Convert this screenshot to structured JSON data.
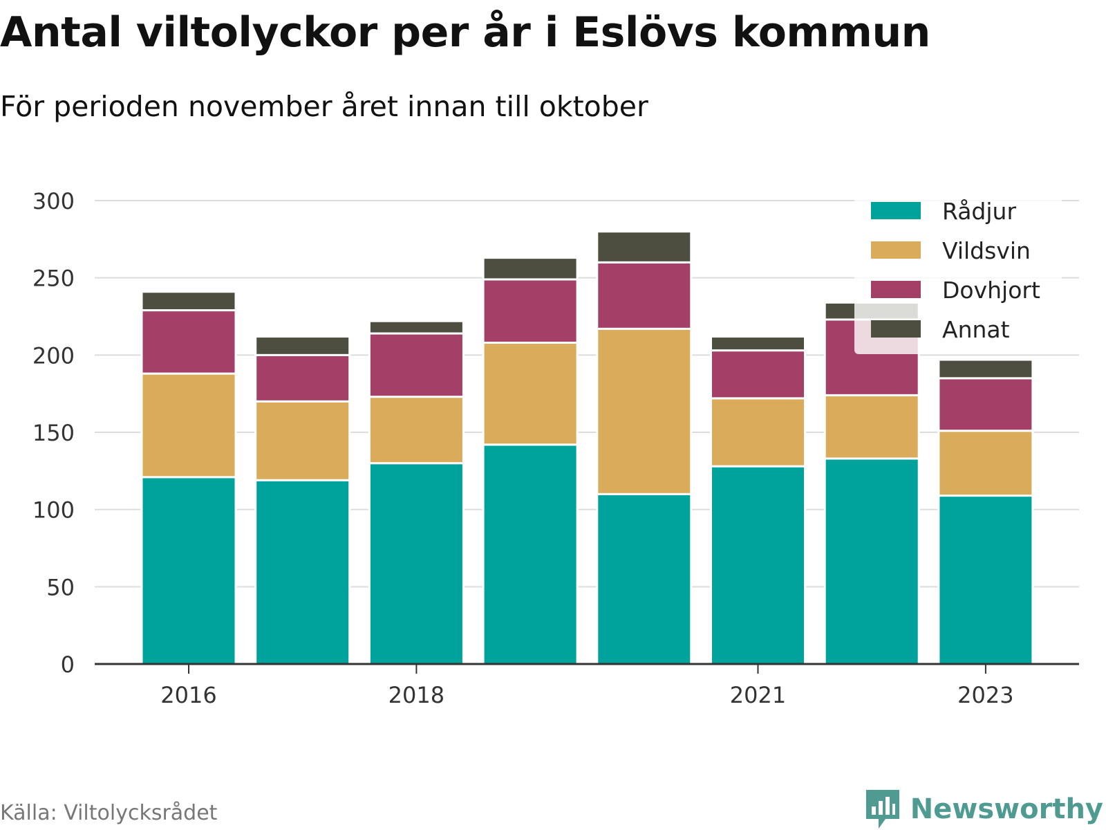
{
  "title": "Antal viltolyckor per år i Eslövs kommun",
  "subtitle": "För perioden november året innan till oktober",
  "source": "Källa: Viltolycksrådet",
  "brand": {
    "name": "Newsworthy",
    "icon": "bar-chart-speech-bubble-icon",
    "color": "#4f9a91"
  },
  "chart_data": {
    "type": "bar",
    "stacked": true,
    "x": [
      2016,
      2017,
      2018,
      2019,
      2020,
      2021,
      2022,
      2023
    ],
    "x_tick_labels": [
      "2016",
      "2018",
      "2021",
      "2023"
    ],
    "x_tick_values": [
      2016,
      2018,
      2021,
      2023
    ],
    "ylim": [
      0,
      300
    ],
    "y_ticks": [
      0,
      50,
      100,
      150,
      200,
      250,
      300
    ],
    "grid": true,
    "legend_position": "top-right",
    "series": [
      {
        "name": "Rådjur",
        "color": "#00a39b",
        "values": [
          121,
          119,
          130,
          142,
          110,
          128,
          133,
          109
        ]
      },
      {
        "name": "Vildsvin",
        "color": "#d9ab5b",
        "values": [
          67,
          51,
          43,
          66,
          107,
          44,
          41,
          42
        ]
      },
      {
        "name": "Dovhjort",
        "color": "#a44067",
        "values": [
          41,
          30,
          41,
          41,
          43,
          31,
          49,
          34
        ]
      },
      {
        "name": "Annat",
        "color": "#4d4e3f",
        "values": [
          12,
          12,
          8,
          14,
          20,
          9,
          11,
          12
        ]
      }
    ]
  }
}
